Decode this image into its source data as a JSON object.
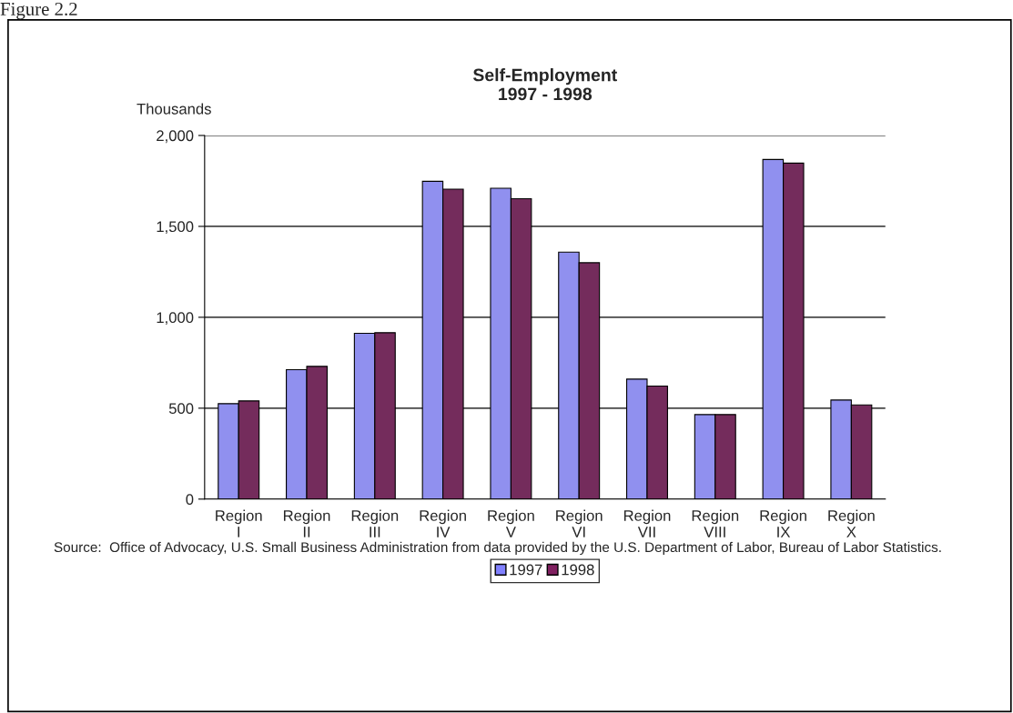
{
  "chart_data": {
    "type": "bar",
    "title": "Self-Employment\n1997 - 1998",
    "ylabel": "Thousands",
    "categories": [
      "Region I",
      "Region II",
      "Region III",
      "Region IV",
      "Region V",
      "Region VI",
      "Region VII",
      "Region VIII",
      "Region IX",
      "Region X"
    ],
    "series": [
      {
        "name": "1997",
        "color": "#8080ff",
        "values": [
          525,
          712,
          912,
          1748,
          1710,
          1358,
          660,
          465,
          1868,
          545
        ]
      },
      {
        "name": "1998",
        "color": "#802060",
        "values": [
          540,
          730,
          915,
          1705,
          1652,
          1300,
          622,
          465,
          1848,
          518
        ]
      }
    ],
    "ylim": [
      0,
      2000
    ],
    "yticks": [
      {
        "value": 0,
        "label": "0"
      },
      {
        "value": 500,
        "label": "500"
      },
      {
        "value": 1000,
        "label": "1,000"
      },
      {
        "value": 1500,
        "label": "1,500"
      },
      {
        "value": 2000,
        "label": "2,000"
      }
    ],
    "grid": "y",
    "legend": "bottom",
    "annotations": [
      "Figure 2.2",
      "Source:  Office of Advocacy, U.S. Small Business Administration from data provided by the U.S. Department of Labor, Bureau of Labor Statistics."
    ]
  }
}
